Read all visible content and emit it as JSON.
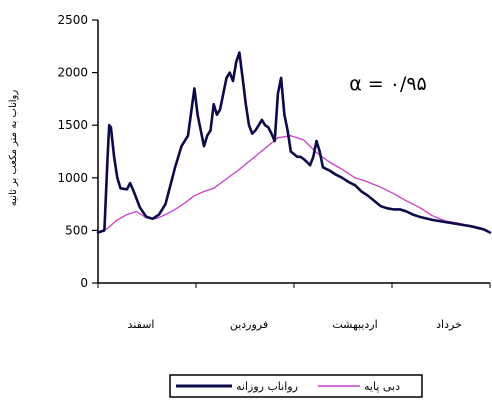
{
  "chart_data": {
    "type": "line",
    "title": "",
    "xlabel": "",
    "ylabel": "رواناب به متر مکعب بر ثانیه",
    "ylim": [
      0,
      2500
    ],
    "yticks": [
      0,
      500,
      1000,
      1500,
      2000,
      2500
    ],
    "grid": false,
    "x_axis_type": "day-of-period",
    "xlim": [
      0,
      122
    ],
    "month_labels": [
      "اسفند",
      "فروردین",
      "اردیبهشت",
      "خرداد"
    ],
    "annotation": "α = ۰/۹۵",
    "legend_placement": "bottom",
    "series": [
      {
        "name": "رواناب روزانه",
        "color": "#0b0b4a",
        "x": [
          0,
          2,
          3,
          3.5,
          4,
          5,
          6,
          7,
          9,
          10,
          11,
          12,
          13,
          15,
          17,
          19,
          21,
          24,
          26,
          28,
          30,
          31,
          32,
          33,
          34,
          35,
          36,
          37,
          38,
          39,
          40,
          41,
          42,
          43,
          44,
          45,
          46,
          47,
          48,
          49,
          50,
          51,
          52,
          53,
          54,
          55,
          56,
          57,
          58,
          59,
          60,
          62,
          63,
          64,
          65,
          66,
          67,
          68,
          69,
          70,
          72,
          74,
          76,
          78,
          80,
          81,
          82,
          83,
          84,
          86,
          88,
          90,
          92,
          94,
          96,
          98,
          100,
          104,
          108,
          112,
          116,
          120,
          122
        ],
        "y": [
          480,
          500,
          1200,
          1500,
          1480,
          1200,
          1000,
          900,
          890,
          950,
          880,
          800,
          720,
          630,
          610,
          650,
          750,
          1100,
          1300,
          1400,
          1850,
          1600,
          1450,
          1300,
          1400,
          1450,
          1700,
          1600,
          1650,
          1800,
          1950,
          2000,
          1920,
          2100,
          2190,
          1950,
          1700,
          1500,
          1420,
          1450,
          1500,
          1550,
          1500,
          1480,
          1420,
          1350,
          1800,
          1950,
          1600,
          1450,
          1250,
          1200,
          1200,
          1180,
          1150,
          1120,
          1200,
          1350,
          1250,
          1100,
          1070,
          1030,
          1000,
          960,
          930,
          900,
          870,
          850,
          830,
          780,
          730,
          710,
          700,
          700,
          680,
          650,
          630,
          600,
          580,
          560,
          540,
          510,
          480
        ]
      },
      {
        "name": "دبی پایه",
        "color": "#cc3fcc",
        "x": [
          0,
          3,
          6,
          9,
          12,
          15,
          18,
          21,
          24,
          27,
          30,
          33,
          36,
          40,
          44,
          48,
          52,
          56,
          60,
          64,
          68,
          72,
          76,
          80,
          84,
          88,
          92,
          96,
          100,
          104,
          108,
          112,
          116,
          120,
          122
        ],
        "y": [
          480,
          520,
          600,
          650,
          680,
          620,
          610,
          650,
          700,
          760,
          830,
          870,
          900,
          990,
          1080,
          1180,
          1280,
          1380,
          1400,
          1360,
          1240,
          1150,
          1080,
          1000,
          960,
          910,
          850,
          780,
          720,
          640,
          590,
          570,
          540,
          510,
          480
        ]
      }
    ]
  }
}
